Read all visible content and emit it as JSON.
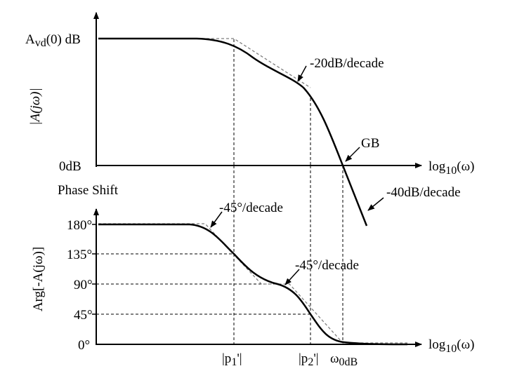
{
  "magnitude_plot": {
    "y_top_label_main": "A",
    "y_top_label_sub": "vd",
    "y_top_label_tail": "(0) dB",
    "y_axis_title": "|A(jω)|",
    "y_zero_label": "0dB",
    "x_axis_label_main": "log",
    "x_axis_label_sub": "10",
    "x_axis_label_tail": "(ω)",
    "annotation_slope1": "-20dB/decade",
    "annotation_gb": "GB",
    "annotation_slope2": "-40dB/decade"
  },
  "phase_plot": {
    "title": "Phase Shift",
    "y_axis_title": "Arg[-A(jω)]",
    "y_ticks": [
      "180°",
      "135°",
      "90°",
      "45°",
      "0°"
    ],
    "x_axis_label_main": "log",
    "x_axis_label_sub": "10",
    "x_axis_label_tail": "(ω)",
    "annotation_slope1": "-45°/decade",
    "annotation_slope2": "-45°/decade",
    "x_markers": [
      {
        "pre": "|p",
        "sub": "1",
        "post": "'|"
      },
      {
        "pre": "|p",
        "sub": "2",
        "post": "'|"
      },
      {
        "pre": "ω",
        "sub": "0dB",
        "post": ""
      }
    ]
  },
  "colors": {
    "curve": "#000000",
    "asymptote": "#7f7f7f",
    "guide": "#000000"
  }
}
